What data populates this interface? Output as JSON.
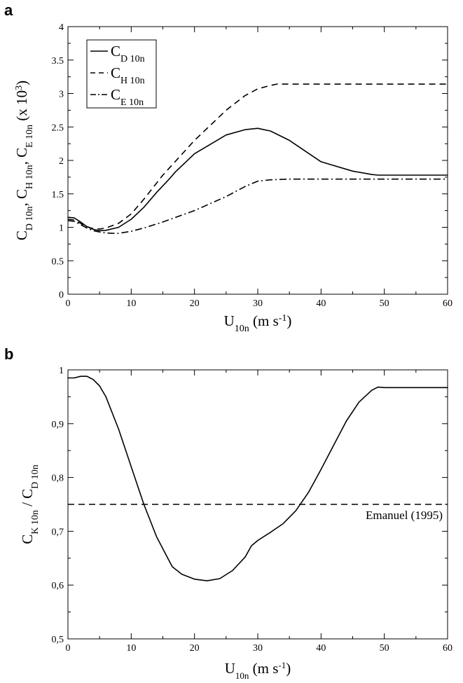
{
  "panels": {
    "a": {
      "letter": "a"
    },
    "b": {
      "letter": "b"
    }
  },
  "chart_data": [
    {
      "type": "line",
      "panel": "a",
      "xlabel": "U10n (m s-1)",
      "ylabel": "CD 10n, CH 10n, CE 10n (x 10^3)",
      "xlim": [
        0,
        60
      ],
      "ylim": [
        0,
        4
      ],
      "x_ticks": [
        "0",
        "10",
        "20",
        "30",
        "40",
        "50",
        "60"
      ],
      "y_ticks": [
        "0",
        "0.5",
        "1",
        "1.5",
        "2",
        "2.5",
        "3",
        "3.5",
        "4"
      ],
      "grid": false,
      "legend": "top-left",
      "series": [
        {
          "name": "CD 10n",
          "style": "solid",
          "x": [
            0,
            1,
            2,
            3,
            4,
            5,
            6,
            8,
            10,
            12,
            14,
            16,
            17,
            20,
            25,
            28,
            30,
            32,
            35,
            40,
            45,
            48,
            49,
            50,
            55,
            60
          ],
          "y": [
            1.15,
            1.14,
            1.08,
            1.01,
            0.97,
            0.95,
            0.955,
            1.0,
            1.12,
            1.3,
            1.52,
            1.72,
            1.83,
            2.1,
            2.38,
            2.46,
            2.48,
            2.44,
            2.3,
            1.98,
            1.84,
            1.79,
            1.78,
            1.78,
            1.78,
            1.78
          ]
        },
        {
          "name": "CH 10n",
          "style": "dashed",
          "x": [
            0,
            1,
            2,
            3,
            4,
            5,
            6,
            8,
            10,
            12,
            15,
            20,
            25,
            28,
            30,
            32,
            33,
            40,
            50,
            60
          ],
          "y": [
            1.12,
            1.11,
            1.06,
            1.01,
            0.98,
            0.975,
            0.99,
            1.06,
            1.2,
            1.42,
            1.78,
            2.3,
            2.75,
            2.97,
            3.07,
            3.12,
            3.14,
            3.14,
            3.14,
            3.14
          ]
        },
        {
          "name": "CE 10n",
          "style": "dash-dot",
          "x": [
            0,
            1,
            2,
            3,
            4,
            5,
            6,
            7,
            8,
            10,
            12,
            15,
            20,
            25,
            28,
            30,
            32,
            35,
            40,
            50,
            60
          ],
          "y": [
            1.1,
            1.09,
            1.04,
            0.99,
            0.95,
            0.93,
            0.915,
            0.91,
            0.91,
            0.94,
            0.99,
            1.08,
            1.25,
            1.46,
            1.61,
            1.69,
            1.71,
            1.72,
            1.72,
            1.72,
            1.72
          ]
        }
      ]
    },
    {
      "type": "line",
      "panel": "b",
      "xlabel": "U10n (m s-1)",
      "ylabel": "CK 10n / CD 10n",
      "xlim": [
        0,
        60
      ],
      "ylim": [
        0.5,
        1.0
      ],
      "x_ticks": [
        "0",
        "10",
        "20",
        "30",
        "40",
        "50",
        "60"
      ],
      "y_ticks": [
        "0,5",
        "0,6",
        "0,7",
        "0,8",
        "0,9",
        "1"
      ],
      "grid": false,
      "annotations": [
        "Emanuel (1995)"
      ],
      "series": [
        {
          "name": "CK 10n / CD 10n",
          "style": "solid",
          "x": [
            0,
            1,
            2,
            3,
            4,
            5,
            6,
            8,
            10,
            12,
            14,
            16,
            16.5,
            18,
            20,
            22,
            24,
            26,
            28,
            29,
            30,
            32,
            34,
            36,
            38,
            40,
            42,
            44,
            46,
            48,
            49,
            50,
            55,
            60
          ],
          "y": [
            0.985,
            0.985,
            0.988,
            0.988,
            0.982,
            0.97,
            0.95,
            0.89,
            0.82,
            0.75,
            0.69,
            0.645,
            0.634,
            0.62,
            0.611,
            0.608,
            0.612,
            0.627,
            0.652,
            0.673,
            0.683,
            0.698,
            0.714,
            0.738,
            0.772,
            0.815,
            0.86,
            0.905,
            0.94,
            0.962,
            0.968,
            0.967,
            0.967,
            0.967
          ]
        },
        {
          "name": "Emanuel (1995)",
          "style": "dashed",
          "x": [
            0,
            60
          ],
          "y": [
            0.75,
            0.75
          ]
        }
      ]
    }
  ]
}
